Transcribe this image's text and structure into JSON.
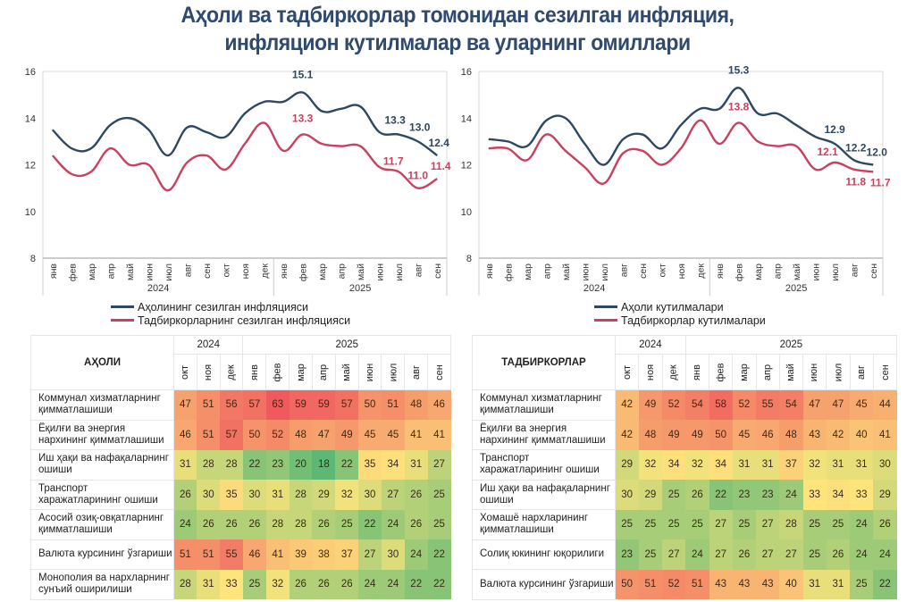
{
  "title": {
    "line1": "Аҳоли ва тадбиркорлар томонидан сезилган инфляция,",
    "line2": "инфляцион кутилмалар ва уларнинг омиллари"
  },
  "colors": {
    "title": "#2f4a6e",
    "population_line": "#2e4763",
    "business_line": "#c8415e",
    "heat_low": "#5cb874",
    "heat_mid": "#fde57c",
    "heat_high": "#ef5a5e"
  },
  "chart_data": [
    {
      "type": "line",
      "title": "",
      "categories": [
        "янв",
        "фев",
        "мар",
        "апр",
        "май",
        "июн",
        "июл",
        "авг",
        "сен",
        "окт",
        "ноя",
        "дек",
        "янв",
        "фев",
        "мар",
        "апр",
        "май",
        "июн",
        "июл",
        "авг",
        "сен"
      ],
      "category_groups": [
        {
          "label": "2024",
          "count": 12
        },
        {
          "label": "2025",
          "count": 9
        }
      ],
      "ylim": [
        8,
        16
      ],
      "yticks": [
        8,
        10,
        12,
        14,
        16
      ],
      "grid": false,
      "legend_position": "bottom",
      "series": [
        {
          "name": "Аҳолининг сезилган инфляцияси",
          "color": "#2e4763",
          "values": [
            13.5,
            12.7,
            12.7,
            13.7,
            14.0,
            13.5,
            12.4,
            13.6,
            13.4,
            13.2,
            14.2,
            14.7,
            14.7,
            15.1,
            14.3,
            14.4,
            14.5,
            13.4,
            13.3,
            13.0,
            12.4
          ],
          "labels": {
            "13": "15.1",
            "18": "13.3",
            "19": "13.0",
            "20": "12.4"
          }
        },
        {
          "name": "Тадбиркорларнинг сезилган инфляцияси",
          "color": "#c8415e",
          "values": [
            12.4,
            11.6,
            11.7,
            12.7,
            12.0,
            12.0,
            10.9,
            12.1,
            12.4,
            11.8,
            12.9,
            13.8,
            12.6,
            13.3,
            12.9,
            12.8,
            12.8,
            11.9,
            11.7,
            11.0,
            11.4
          ],
          "labels": {
            "13": "13.3",
            "18": "11.7",
            "19": "11.0",
            "20": "11.4"
          }
        }
      ]
    },
    {
      "type": "line",
      "title": "",
      "categories": [
        "янв",
        "фев",
        "мар",
        "апр",
        "май",
        "июн",
        "июл",
        "авг",
        "сен",
        "окт",
        "ноя",
        "дек",
        "янв",
        "фев",
        "мар",
        "апр",
        "май",
        "июн",
        "июл",
        "авг",
        "сен"
      ],
      "category_groups": [
        {
          "label": "2024",
          "count": 12
        },
        {
          "label": "2025",
          "count": 9
        }
      ],
      "ylim": [
        8,
        16
      ],
      "yticks": [
        8,
        10,
        12,
        14,
        16
      ],
      "grid": false,
      "legend_position": "bottom",
      "series": [
        {
          "name": "Аҳоли кутилмалари",
          "color": "#2e4763",
          "values": [
            13.1,
            13.0,
            12.8,
            13.9,
            14.0,
            12.9,
            12.0,
            13.1,
            13.3,
            12.7,
            13.7,
            14.4,
            14.4,
            15.3,
            14.2,
            14.2,
            13.7,
            13.2,
            12.9,
            12.2,
            12.0
          ],
          "labels": {
            "13": "15.3",
            "18": "12.9",
            "19": "12.2",
            "20": "12.0"
          }
        },
        {
          "name": "Тадбиркорлар кутилмалари",
          "color": "#c8415e",
          "values": [
            12.7,
            12.7,
            12.2,
            13.3,
            12.6,
            11.9,
            11.2,
            12.5,
            12.6,
            12.0,
            12.7,
            13.9,
            12.9,
            13.8,
            13.0,
            12.8,
            12.8,
            11.8,
            12.1,
            11.8,
            11.7
          ],
          "labels": {
            "13": "13.8",
            "18": "12.1",
            "19": "11.8",
            "20": "11.7"
          }
        }
      ]
    },
    {
      "type": "heatmap",
      "title": "АҲОЛИ",
      "year_groups": [
        {
          "label": "2024",
          "count": 3
        },
        {
          "label": "2025",
          "count": 9
        }
      ],
      "columns": [
        "окт",
        "ноя",
        "дек",
        "янв",
        "фев",
        "мар",
        "апр",
        "май",
        "июн",
        "июл",
        "авг",
        "сен"
      ],
      "rows": [
        {
          "label": "Коммунал хизматларнинг қимматлашиши",
          "values": [
            47,
            51,
            56,
            57,
            63,
            59,
            59,
            57,
            50,
            51,
            48,
            46
          ]
        },
        {
          "label": "Ёқилғи ва энергия нархининг қимматлашиши",
          "values": [
            46,
            51,
            57,
            50,
            52,
            48,
            47,
            49,
            45,
            45,
            41,
            41
          ]
        },
        {
          "label": "Иш ҳақи ва нафақаларнинг ошиши",
          "values": [
            31,
            28,
            28,
            22,
            23,
            20,
            18,
            22,
            35,
            34,
            31,
            27
          ]
        },
        {
          "label": "Транспорт харажатларининг ошиши",
          "values": [
            26,
            30,
            35,
            30,
            31,
            28,
            29,
            32,
            30,
            27,
            26,
            25
          ]
        },
        {
          "label": "Асосий озиқ-овқатларнинг қимматлашиши",
          "values": [
            24,
            26,
            26,
            26,
            28,
            28,
            26,
            25,
            22,
            24,
            26,
            25
          ]
        },
        {
          "label": "Валюта курсининг ўзгариши",
          "values": [
            51,
            51,
            55,
            46,
            41,
            39,
            38,
            37,
            27,
            30,
            24,
            22
          ]
        },
        {
          "label": "Монополия ва нархларнинг сунъий оширилиши",
          "values": [
            28,
            31,
            33,
            25,
            32,
            26,
            26,
            26,
            24,
            24,
            22,
            22
          ]
        }
      ]
    },
    {
      "type": "heatmap",
      "title": "ТАДБИРКОРЛАР",
      "year_groups": [
        {
          "label": "2024",
          "count": 3
        },
        {
          "label": "2025",
          "count": 9
        }
      ],
      "columns": [
        "окт",
        "ноя",
        "дек",
        "янв",
        "фев",
        "мар",
        "апр",
        "май",
        "июн",
        "июл",
        "авг",
        "сен"
      ],
      "rows": [
        {
          "label": "Коммунал хизматларнинг қимматлашиши",
          "values": [
            42,
            49,
            52,
            54,
            58,
            52,
            55,
            54,
            47,
            47,
            45,
            44
          ]
        },
        {
          "label": "Ёқилғи ва энергия нархининг қимматлашиши",
          "values": [
            42,
            48,
            49,
            49,
            50,
            45,
            46,
            48,
            43,
            42,
            40,
            41
          ]
        },
        {
          "label": "Транспорт харажатларининг ошиши",
          "values": [
            29,
            32,
            34,
            32,
            34,
            31,
            31,
            37,
            32,
            31,
            31,
            30
          ]
        },
        {
          "label": "Иш ҳақи ва нафақаларнинг ошиши",
          "values": [
            30,
            29,
            25,
            26,
            22,
            23,
            23,
            24,
            33,
            34,
            33,
            29
          ]
        },
        {
          "label": "Хомашё нархларининг қимматлашиши",
          "values": [
            25,
            25,
            25,
            25,
            27,
            25,
            27,
            28,
            25,
            25,
            24,
            26
          ]
        },
        {
          "label": "Солиқ юкининг юқорилиги",
          "values": [
            23,
            25,
            27,
            24,
            27,
            26,
            27,
            27,
            25,
            26,
            24,
            24
          ]
        },
        {
          "label": "Валюта курсининг ўзгариши",
          "values": [
            50,
            51,
            52,
            51,
            43,
            43,
            43,
            40,
            31,
            31,
            25,
            22
          ]
        }
      ]
    }
  ]
}
